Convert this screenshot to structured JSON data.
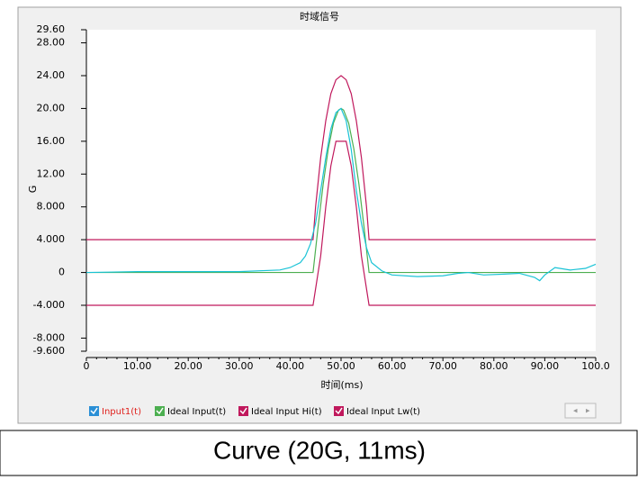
{
  "chart_data": {
    "type": "line",
    "title": "时域信号",
    "xlabel": "时间(ms)",
    "ylabel": "G",
    "xlim": [
      0,
      100
    ],
    "ylim": [
      -9.6,
      29.6
    ],
    "xticks": [
      0,
      {
        "value": 10,
        "label": "10.00"
      },
      {
        "value": 20,
        "label": "20.00"
      },
      {
        "value": 30,
        "label": "30.00"
      },
      {
        "value": 40,
        "label": "40.00"
      },
      {
        "value": 50,
        "label": "50.00"
      },
      {
        "value": 60,
        "label": "60.00"
      },
      {
        "value": 70,
        "label": "70.00"
      },
      {
        "value": 80,
        "label": "80.00"
      },
      {
        "value": 90,
        "label": "90.00"
      },
      {
        "value": 100,
        "label": "100.0"
      }
    ],
    "yticks": [
      {
        "value": -9.6,
        "label": "-9.600"
      },
      {
        "value": -8,
        "label": "-8.000"
      },
      {
        "value": -4,
        "label": "-4.000"
      },
      0,
      {
        "value": 4,
        "label": "4.000"
      },
      {
        "value": 8,
        "label": "8.000"
      },
      {
        "value": 12,
        "label": "12.00"
      },
      {
        "value": 16,
        "label": "16.00"
      },
      {
        "value": 20,
        "label": "20.00"
      },
      {
        "value": 24,
        "label": "24.00"
      },
      {
        "value": 28,
        "label": "28.00"
      },
      {
        "value": 29.6,
        "label": "29.60"
      }
    ],
    "grid": false,
    "legend": "bottom",
    "series": [
      {
        "name": "Input1(t)",
        "color": "#19c3d6",
        "x": [
          0,
          10,
          20,
          30,
          38,
          40,
          42,
          43,
          44,
          45,
          46,
          47,
          48,
          49,
          50,
          51,
          52,
          53,
          54,
          55,
          56,
          58,
          60,
          65,
          70,
          73,
          75,
          78,
          82,
          85,
          88,
          89,
          90,
          92,
          95,
          98,
          100
        ],
        "values": [
          0,
          0.1,
          0.1,
          0.1,
          0.3,
          0.6,
          1.2,
          2,
          3.5,
          6,
          10,
          14,
          17.5,
          19.5,
          20,
          18.5,
          15,
          10,
          6,
          3,
          1.2,
          0.2,
          -0.3,
          -0.5,
          -0.4,
          -0.1,
          0,
          -0.3,
          -0.2,
          -0.1,
          -0.6,
          -1,
          -0.3,
          0.6,
          0.3,
          0.5,
          1
        ]
      },
      {
        "name": "Ideal Input(t)",
        "color": "#4caf50",
        "x": [
          0,
          44.5,
          45.5,
          46.5,
          47.5,
          48.5,
          49.5,
          50,
          50.5,
          51.5,
          52.5,
          53.5,
          54.5,
          55.5,
          100
        ],
        "values": [
          0,
          0,
          5.6,
          10.8,
          15.1,
          18.2,
          19.8,
          20,
          19.8,
          18.2,
          15.1,
          10.8,
          5.6,
          0,
          0
        ]
      },
      {
        "name": "Ideal Input Hi(t)",
        "color": "#c0185c",
        "x": [
          0,
          44.5,
          45,
          46,
          47,
          48,
          49,
          50,
          51,
          52,
          53,
          54,
          55,
          55.5,
          100
        ],
        "values": [
          4,
          4,
          8,
          14,
          18.5,
          21.8,
          23.5,
          24,
          23.5,
          21.8,
          18.5,
          14,
          8,
          4,
          4
        ]
      },
      {
        "name": "Ideal Input Lw(t)",
        "color": "#c0185c",
        "x": [
          0,
          44.5,
          46,
          47,
          48,
          49,
          51,
          52,
          53,
          54,
          55.5,
          100
        ],
        "values": [
          -4,
          -4,
          2,
          8,
          13,
          16,
          16,
          13,
          8,
          2,
          -4,
          -4
        ]
      }
    ]
  },
  "caption": "Curve (20G, 11ms)"
}
